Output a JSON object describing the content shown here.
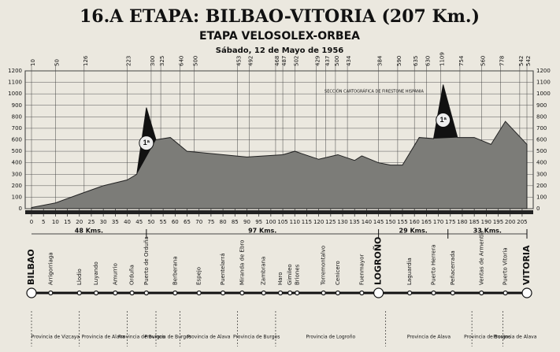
{
  "chart_data": {
    "type": "area",
    "title": "16.A ETAPA: BILBAO-VITORIA (207 Km.)",
    "subtitle": "ETAPA VELOSOLEX-ORBEA",
    "date": "Sábado, 12 de Mayo de 1956",
    "annotation": "SECCIÓN CARTOGRÁFICA DE FIRESTONE HISPANIA",
    "color": "#7c7c78",
    "grid": true,
    "x": [
      0,
      10,
      20,
      30,
      40,
      44,
      48,
      52,
      58,
      65,
      75,
      90,
      105,
      110,
      120,
      128,
      135,
      138,
      145,
      150,
      155,
      162,
      168,
      172,
      178,
      185,
      192,
      198,
      207
    ],
    "values": [
      10,
      50,
      126,
      200,
      250,
      300,
      880,
      600,
      620,
      500,
      480,
      450,
      470,
      500,
      430,
      470,
      420,
      460,
      400,
      380,
      380,
      620,
      610,
      1080,
      620,
      620,
      560,
      760,
      560
    ],
    "climbs": [
      {
        "label": "1ª",
        "from": 44,
        "to": 52
      },
      {
        "label": "1ª",
        "from": 165,
        "to": 178
      }
    ],
    "spot_heights": {
      "km": [
        0,
        10,
        22,
        40,
        50,
        54,
        62,
        68,
        86,
        91,
        102,
        105,
        110,
        119,
        123,
        127,
        132,
        145,
        153,
        160,
        165,
        171,
        179,
        188,
        196,
        204,
        207
      ],
      "labels": [
        10,
        50,
        126,
        223,
        300,
        325,
        640,
        500,
        453,
        492,
        468,
        487,
        502,
        429,
        437,
        500,
        434,
        384,
        590,
        635,
        630,
        1109,
        754,
        560,
        778,
        542,
        542
      ]
    },
    "xlim": [
      0,
      207
    ],
    "ylim": [
      0,
      1200
    ],
    "xticks": [
      0,
      5,
      10,
      15,
      20,
      25,
      30,
      35,
      40,
      45,
      50,
      55,
      60,
      65,
      70,
      75,
      80,
      85,
      90,
      95,
      100,
      105,
      110,
      115,
      120,
      125,
      130,
      135,
      140,
      145,
      150,
      155,
      160,
      165,
      170,
      175,
      180,
      185,
      190,
      195,
      200,
      205
    ],
    "yticks": [
      0,
      100,
      200,
      300,
      400,
      500,
      600,
      700,
      800,
      900,
      1000,
      1100,
      1200
    ],
    "segments": [
      {
        "from": 0,
        "to": 48,
        "label": "48 Kms."
      },
      {
        "from": 48,
        "to": 145,
        "label": "97 Kms."
      },
      {
        "from": 145,
        "to": 174,
        "label": "29 Kms."
      },
      {
        "from": 174,
        "to": 207,
        "label": "33 Kms."
      }
    ],
    "towns": [
      {
        "km": 0,
        "name": "BILBAO"
      },
      {
        "km": 8,
        "name": "Arrigorriaga"
      },
      {
        "km": 20,
        "name": "Llodio"
      },
      {
        "km": 27,
        "name": "Luyando"
      },
      {
        "km": 35,
        "name": "Amurrio"
      },
      {
        "km": 42,
        "name": "Orduña"
      },
      {
        "km": 48,
        "name": "Puerto de Orduña"
      },
      {
        "km": 60,
        "name": "Berberana"
      },
      {
        "km": 70,
        "name": "Espejo"
      },
      {
        "km": 80,
        "name": "Puentelarrá"
      },
      {
        "km": 88,
        "name": "Miranda de Ebro"
      },
      {
        "km": 97,
        "name": "Zambrana"
      },
      {
        "km": 104,
        "name": "Haro"
      },
      {
        "km": 108,
        "name": "Gimileo"
      },
      {
        "km": 111,
        "name": "Briones"
      },
      {
        "km": 122,
        "name": "Torremontalvo"
      },
      {
        "km": 128,
        "name": "Cenicero"
      },
      {
        "km": 138,
        "name": "Fuenmayor"
      },
      {
        "km": 145,
        "name": "LOGROÑO"
      },
      {
        "km": 158,
        "name": "Laguardia"
      },
      {
        "km": 168,
        "name": "Puerto Herrera"
      },
      {
        "km": 176,
        "name": "Peñacerrada"
      },
      {
        "km": 188,
        "name": "Ventas de Armentia"
      },
      {
        "km": 198,
        "name": "Puerto Vitoria"
      },
      {
        "km": 207,
        "name": "VITORIA"
      }
    ],
    "provinces": [
      {
        "from": 0,
        "to": 20,
        "name": "Provincia de Vizcaya"
      },
      {
        "from": 20,
        "to": 40,
        "name": "Provincia de Alava"
      },
      {
        "from": 40,
        "to": 52,
        "name": "Provincia de Burgos"
      },
      {
        "from": 52,
        "to": 62,
        "name": "Provincia de Burgos"
      },
      {
        "from": 62,
        "to": 86,
        "name": "Provincia de Alava"
      },
      {
        "from": 86,
        "to": 102,
        "name": "Provincia de Burgos"
      },
      {
        "from": 102,
        "to": 148,
        "name": "Provincia de Logroño"
      },
      {
        "from": 148,
        "to": 184,
        "name": "Provincia de Alava"
      },
      {
        "from": 184,
        "to": 197,
        "name": "Provincia de Burgos"
      },
      {
        "from": 197,
        "to": 207,
        "name": "Provincia de Alava"
      }
    ]
  }
}
